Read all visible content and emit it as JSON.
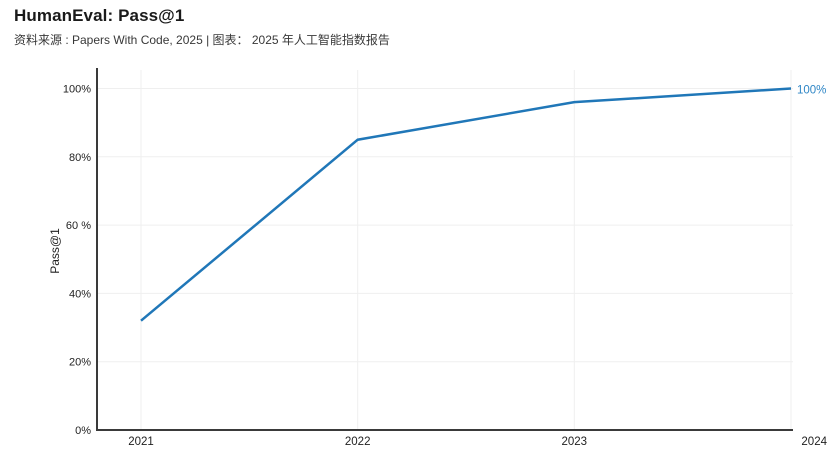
{
  "header": {
    "title": "HumanEval: Pass@1",
    "subtitle": "资料来源 : Papers With Code, 2025 | 图表： 2025 年人工智能指数报告"
  },
  "chart_data": {
    "type": "line",
    "title": "HumanEval: Pass@1",
    "xlabel": "",
    "ylabel": "Pass@1",
    "x": [
      2021,
      2022,
      2023,
      2024
    ],
    "x_tick_labels": [
      "2021",
      "2022",
      "2023",
      "2024"
    ],
    "y_ticks": [
      0,
      20,
      40,
      60,
      80,
      100
    ],
    "y_tick_labels": [
      "0%",
      "20%",
      "40%",
      "60 %",
      "80%",
      "100%"
    ],
    "ylim": [
      0,
      100
    ],
    "grid": true,
    "legend": "none",
    "series": [
      {
        "name": "Pass@1",
        "values": [
          32,
          85,
          96,
          100
        ]
      }
    ],
    "end_label": {
      "text": "100%"
    },
    "colors": {
      "line": "#2077b8",
      "end_label": "#2e86c6",
      "axis": "#3a3a3a",
      "grid": "#efefef",
      "tick_text": "#1f1f1f",
      "axis_title_text": "#1f1f1f"
    }
  }
}
